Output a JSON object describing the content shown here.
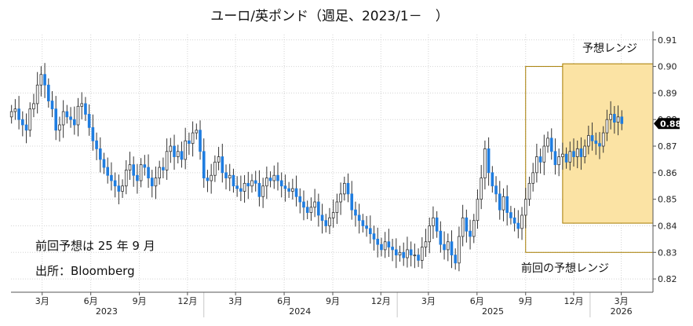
{
  "chart_data": {
    "type": "candlestick",
    "title": "ユーロ/英ポンド（週足、2023/1－　）",
    "y_axis": {
      "side": "right",
      "min": 0.815,
      "max": 0.912,
      "ticks": [
        "0.82",
        "0.83",
        "0.84",
        "0.85",
        "0.86",
        "0.87",
        "0.88",
        "0.89",
        "0.90",
        "0.91"
      ],
      "current_value_label": "0.88",
      "current_value": 0.8785
    },
    "x_axis": {
      "start": "2023-01-01",
      "end": "2026-04-30",
      "month_ticks": [
        {
          "date": "2023-03-01",
          "label": "3月"
        },
        {
          "date": "2023-06-01",
          "label": "6月"
        },
        {
          "date": "2023-09-01",
          "label": "9月"
        },
        {
          "date": "2023-12-01",
          "label": "12月"
        },
        {
          "date": "2024-03-01",
          "label": "3月"
        },
        {
          "date": "2024-06-01",
          "label": "6月"
        },
        {
          "date": "2024-09-01",
          "label": "9月"
        },
        {
          "date": "2024-12-01",
          "label": "12月"
        },
        {
          "date": "2025-03-01",
          "label": "3月"
        },
        {
          "date": "2025-06-01",
          "label": "6月"
        },
        {
          "date": "2025-09-01",
          "label": "9月"
        },
        {
          "date": "2025-12-01",
          "label": "12月"
        },
        {
          "date": "2026-03-01",
          "label": "3月"
        }
      ],
      "year_labels": [
        {
          "label": "2023",
          "date": "2023-07-01"
        },
        {
          "label": "2024",
          "date": "2024-07-01"
        },
        {
          "label": "2025",
          "date": "2025-07-01"
        },
        {
          "label": "2026",
          "date": "2026-03-01"
        }
      ],
      "year_separators": [
        "2024-01-01",
        "2025-01-01",
        "2026-01-01"
      ]
    },
    "grid": true,
    "colors": {
      "up": "#ffffff",
      "down": "#1f7de0",
      "wick": "#333333",
      "forecast_fill": "#fbe3a4",
      "forecast_edge": "#a67c00",
      "prev_forecast_edge": "#a67c00"
    },
    "forecast_range": {
      "label": "予想レンジ",
      "start": "2025-11-10",
      "end": "2026-04-30",
      "low": 0.841,
      "high": 0.901
    },
    "previous_forecast_range": {
      "label": "前回の予想レンジ",
      "start": "2025-09-01",
      "end": "2026-04-30",
      "low": 0.83,
      "high": 0.9
    },
    "notes": [
      "前回予想は 25 年 9 月",
      "出所：Bloomberg"
    ],
    "weekly_close": [
      0.883,
      0.884,
      0.88,
      0.878,
      0.876,
      0.884,
      0.886,
      0.893,
      0.897,
      0.893,
      0.887,
      0.884,
      0.876,
      0.878,
      0.883,
      0.881,
      0.88,
      0.878,
      0.885,
      0.886,
      0.882,
      0.877,
      0.872,
      0.869,
      0.865,
      0.862,
      0.859,
      0.857,
      0.855,
      0.853,
      0.855,
      0.861,
      0.863,
      0.859,
      0.857,
      0.863,
      0.862,
      0.858,
      0.855,
      0.858,
      0.862,
      0.861,
      0.868,
      0.87,
      0.866,
      0.868,
      0.865,
      0.872,
      0.871,
      0.875,
      0.876,
      0.868,
      0.858,
      0.857,
      0.859,
      0.864,
      0.866,
      0.86,
      0.858,
      0.859,
      0.855,
      0.854,
      0.853,
      0.856,
      0.855,
      0.857,
      0.856,
      0.851,
      0.855,
      0.858,
      0.857,
      0.859,
      0.857,
      0.855,
      0.854,
      0.853,
      0.854,
      0.851,
      0.849,
      0.847,
      0.845,
      0.847,
      0.849,
      0.844,
      0.842,
      0.84,
      0.843,
      0.845,
      0.849,
      0.852,
      0.856,
      0.852,
      0.846,
      0.844,
      0.842,
      0.84,
      0.839,
      0.837,
      0.835,
      0.833,
      0.831,
      0.834,
      0.832,
      0.831,
      0.829,
      0.83,
      0.828,
      0.831,
      0.829,
      0.829,
      0.827,
      0.832,
      0.834,
      0.84,
      0.843,
      0.838,
      0.833,
      0.831,
      0.834,
      0.829,
      0.826,
      0.836,
      0.843,
      0.838,
      0.836,
      0.842,
      0.85,
      0.858,
      0.869,
      0.86,
      0.855,
      0.852,
      0.846,
      0.851,
      0.845,
      0.843,
      0.841,
      0.839,
      0.844,
      0.85,
      0.856,
      0.86,
      0.866,
      0.864,
      0.87,
      0.873,
      0.868,
      0.863,
      0.866,
      0.867,
      0.864,
      0.868,
      0.866,
      0.869,
      0.866,
      0.87,
      0.874,
      0.872,
      0.871,
      0.87,
      0.875,
      0.88,
      0.882,
      0.879,
      0.881,
      0.8785
    ]
  }
}
